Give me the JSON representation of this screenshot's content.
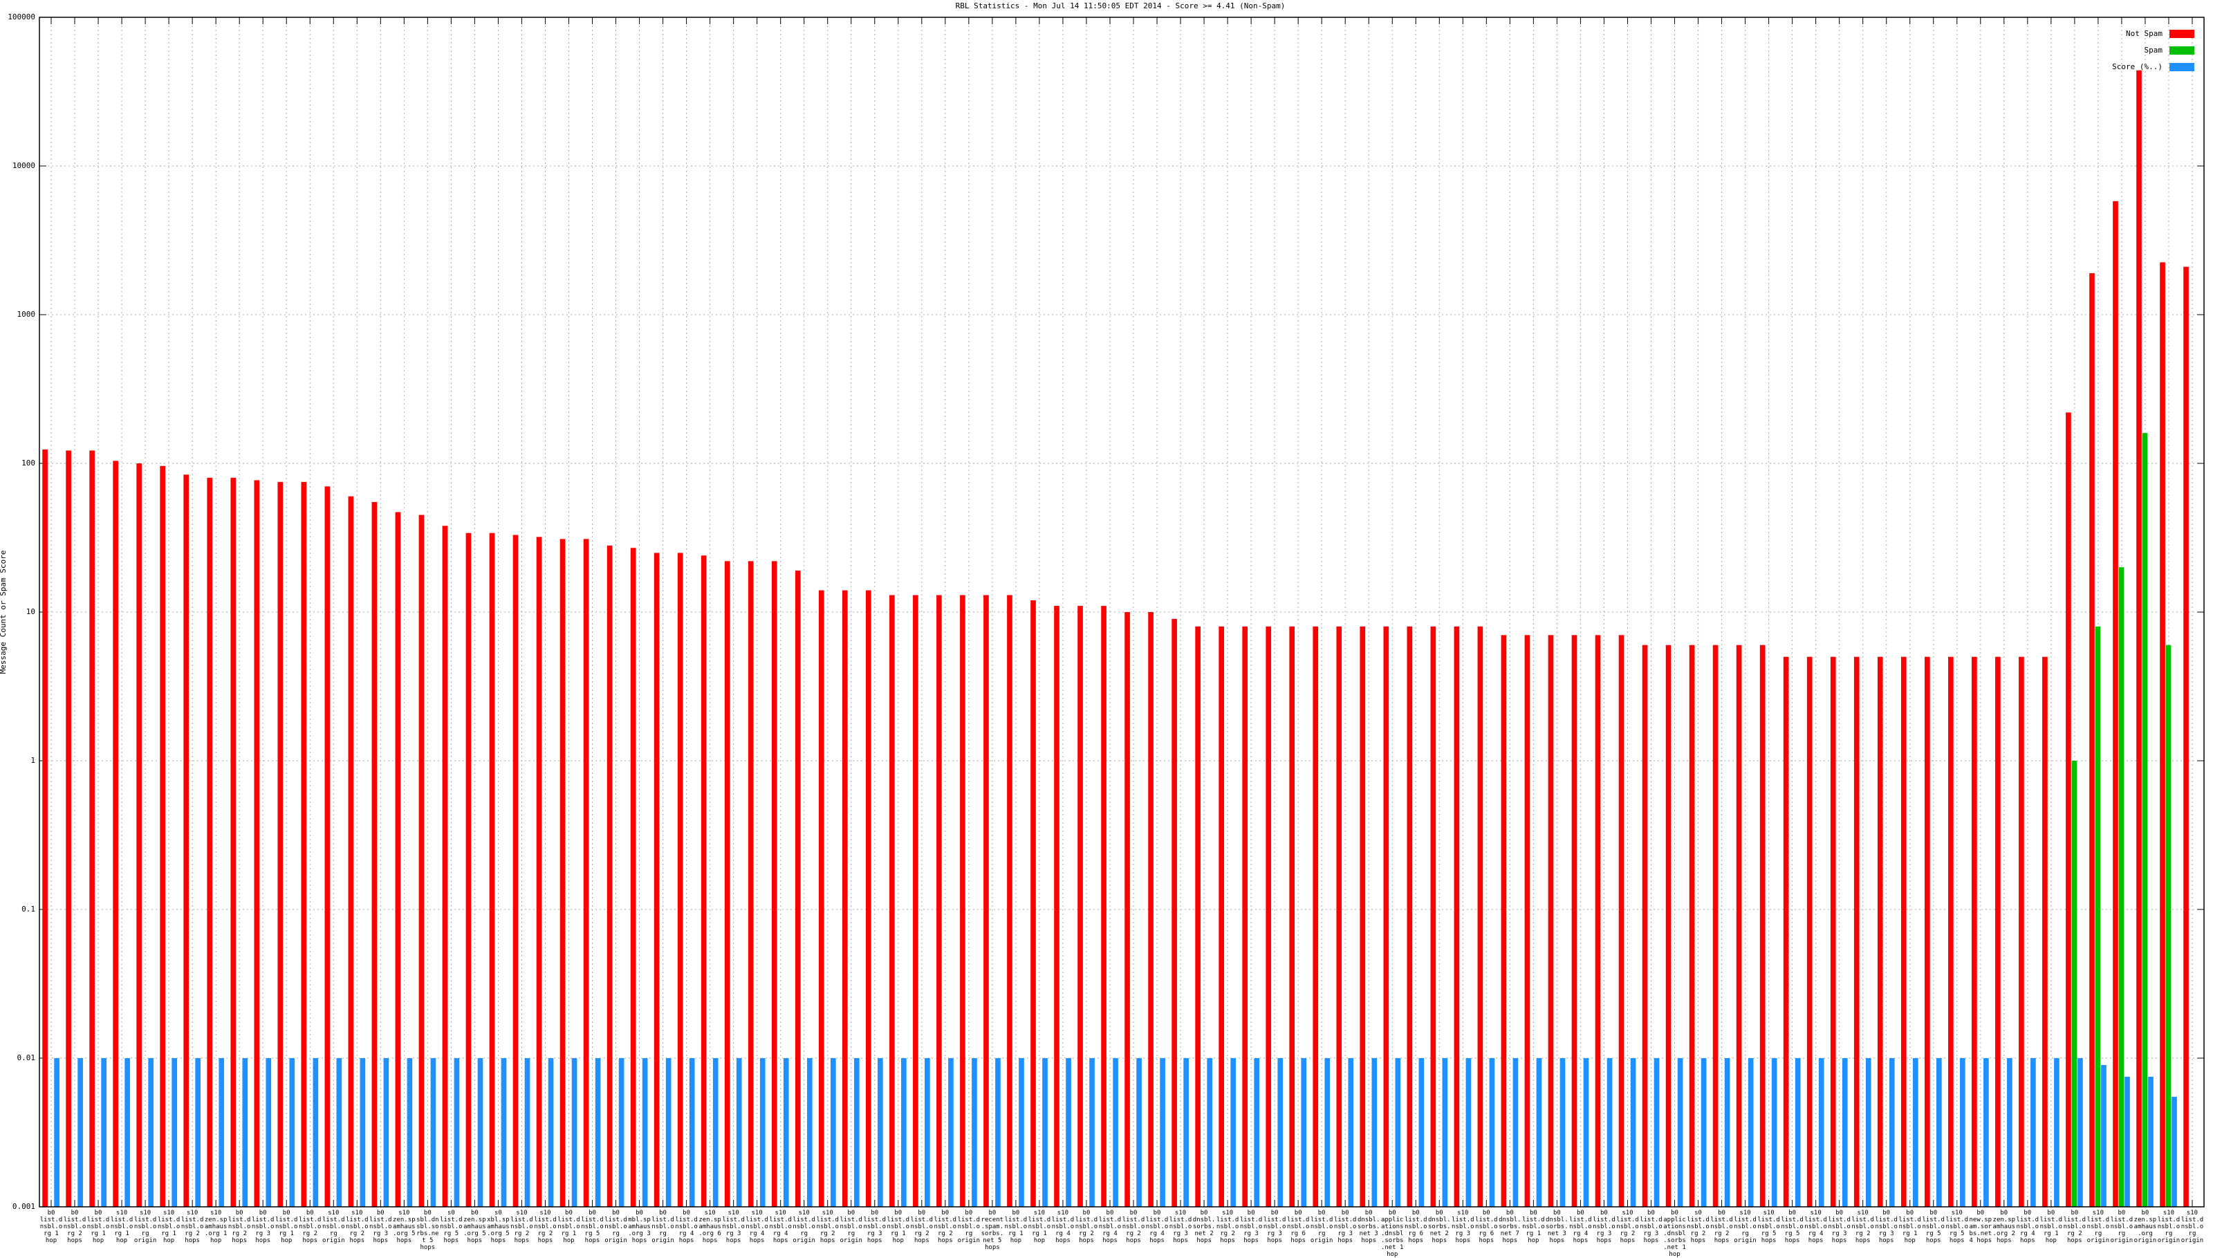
{
  "chart_data": {
    "type": "bar",
    "title": "RBL Statistics - Mon Jul 14 11:50:05 EDT 2014 - Score >= 4.41 (Non-Spam)",
    "y_label": "Message Count or Spam Score",
    "log_scale": true,
    "grid": true,
    "ylim": [
      0.001,
      100000
    ],
    "yticks": [
      0.001,
      0.01,
      0.1,
      1,
      10,
      100,
      1000,
      10000,
      100000
    ],
    "legend": "top-right",
    "categories": [
      "b0 list.dnsbl.org 1 hop",
      "b0 list.dnsbl.org 2 hops",
      "b0 list.dnsbl.org 1 hop",
      "s10 list.dnsbl.org 1 hop",
      "s10 list.dnsbl.org origin",
      "s10 list.dnsbl.org 1 hop",
      "s10 list.dnsbl.org 2 hops",
      "s10 zen.spamhaus.org 1 hop",
      "b0 list.dnsbl.org 2 hops",
      "b0 list.dnsbl.org 3 hops",
      "b0 list.dnsbl.org 1 hop",
      "b0 list.dnsbl.org 2 hops",
      "s10 list.dnsbl.org origin",
      "s10 list.dnsbl.org 2 hops",
      "b0 list.dnsbl.org 3 hops",
      "s10 zen.spamhaus.org 5 hops",
      "b0 sbl.dnsbl.sorbs.net 5 hops",
      "s0 list.dnsbl.org 5 hops",
      "b0 zen.spamhaus.org 5 hops",
      "s0 xbl.spamhaus.org 5 hops",
      "s10 list.dnsbl.org 2 hops",
      "s10 list.dnsbl.org 2 hops",
      "b0 list.dnsbl.org 1 hop",
      "b0 list.dnsbl.org 5 hops",
      "b0 list.dnsbl.org origin",
      "b0 mbl.spamhaus.org 3 hops",
      "b0 list.dnsbl.org origin",
      "b0 list.dnsbl.org 4 hops",
      "s10 zen.spamhaus.org 6 hops",
      "s10 list.dnsbl.org 3 hops",
      "s10 list.dnsbl.org 4 hops",
      "s10 list.dnsbl.org 4 hops",
      "s10 list.dnsbl.org origin",
      "s10 list.dnsbl.org 2 hops",
      "b0 list.dnsbl.org origin",
      "b0 list.dnsbl.org 3 hops",
      "b0 list.dnsbl.org 1 hop",
      "b0 list.dnsbl.org 2 hops",
      "b0 list.dnsbl.org 2 hops",
      "b0 list.dnsbl.org origin",
      "b0 recent.spam.sorbs.net 5 hops",
      "b0 list.dnsbl.org 1 hop",
      "s10 list.dnsbl.org 1 hop",
      "s10 list.dnsbl.org 4 hops",
      "b0 list.dnsbl.org 2 hops",
      "b0 list.dnsbl.org 4 hops",
      "b0 list.dnsbl.org 2 hops",
      "b0 list.dnsbl.org 4 hops",
      "s10 list.dnsbl.org 3 hops",
      "b0 dnsbl.sorbs.net 2 hops",
      "s10 list.dnsbl.org 2 hops",
      "b0 list.dnsbl.org 3 hops",
      "b0 list.dnsbl.org 3 hops",
      "b0 list.dnsbl.org 6 hops",
      "b0 list.dnsbl.org origin",
      "b0 list.dnsbl.org 3 hops",
      "b0 dnsbl.sorbs.net 3 hops",
      "b0 applications.dnsbl.sorbs.net 1 hop",
      "b0 list.dnsbl.org 6 hops",
      "b0 dnsbl.sorbs.net 2 hops",
      "s10 list.dnsbl.org 3 hops",
      "b0 list.dnsbl.org 6 hops",
      "b0 dnsbl.sorbs.net 7 hops",
      "b0 list.dnsbl.org 1 hop",
      "b0 dnsbl.sorbs.net 3 hops",
      "b0 list.dnsbl.org 4 hops",
      "b0 list.dnsbl.org 3 hops",
      "s10 list.dnsbl.org 2 hops",
      "b0 list.dnsbl.org 3 hops",
      "b0 applications.dnsbl.sorbs.net 1 hop",
      "s0 list.dnsbl.org 2 hops",
      "b0 list.dnsbl.org 2 hops",
      "s10 list.dnsbl.org origin",
      "s10 list.dnsbl.org 5 hops",
      "b0 list.dnsbl.org 5 hops",
      "s10 list.dnsbl.org 4 hops",
      "b0 list.dnsbl.org 3 hops",
      "s10 list.dnsbl.org 2 hops",
      "b0 list.dnsbl.org 3 hops",
      "b0 list.dnsbl.org 1 hop",
      "b0 list.dnsbl.org 5 hops",
      "s10 list.dnsbl.org 5 hops",
      "b0 new.spam.sorbs.net 4 hops",
      "b0 zen.spamhaus.org 2 hops",
      "b0 list.dnsbl.org 4 hops",
      "b0 list.dnsbl.org 1 hop",
      "b0 list.dnsbl.org 2 hops",
      "s10 list.dnsbl.org origin",
      "b0 list.dnsbl.org origin",
      "b0 zen.spamhaus.org origin",
      "s10 list.dnsbl.org origin",
      "s10 list.dnsbl.org origin"
    ],
    "series": [
      {
        "name": "Not Spam",
        "color": "#ff0000",
        "values": [
          124,
          122,
          122,
          104,
          100,
          96,
          84,
          80,
          80,
          77,
          75,
          75,
          70,
          60,
          55,
          47,
          45,
          38,
          34,
          34,
          33,
          32,
          31,
          31,
          28,
          27,
          25,
          25,
          24,
          22,
          22,
          22,
          19,
          14,
          14,
          14,
          13,
          13,
          13,
          13,
          13,
          13,
          12,
          11,
          11,
          11,
          10,
          10,
          9,
          8,
          8,
          8,
          8,
          8,
          8,
          8,
          8,
          8,
          8,
          8,
          8,
          8,
          7,
          7,
          7,
          7,
          7,
          7,
          6,
          6,
          6,
          6,
          6,
          6,
          5,
          5,
          5,
          5,
          5,
          5,
          5,
          5,
          5,
          5,
          5,
          5,
          220,
          1900,
          5800,
          44000,
          2250,
          2100
        ]
      },
      {
        "name": "Spam",
        "color": "#00c000",
        "values": [
          null,
          null,
          null,
          null,
          null,
          null,
          null,
          null,
          null,
          null,
          null,
          null,
          null,
          null,
          null,
          null,
          null,
          null,
          null,
          null,
          null,
          null,
          null,
          null,
          null,
          null,
          null,
          null,
          null,
          null,
          null,
          null,
          null,
          null,
          null,
          null,
          null,
          null,
          null,
          null,
          null,
          null,
          null,
          null,
          null,
          null,
          null,
          null,
          null,
          null,
          null,
          null,
          null,
          null,
          null,
          null,
          null,
          null,
          null,
          null,
          null,
          null,
          null,
          null,
          null,
          null,
          null,
          null,
          null,
          null,
          null,
          null,
          null,
          null,
          null,
          null,
          null,
          null,
          null,
          null,
          null,
          null,
          null,
          null,
          null,
          null,
          1,
          8,
          20,
          160,
          6,
          null
        ]
      },
      {
        "name": "Score (%..)",
        "color": "#1e90ff",
        "values": [
          0.01,
          0.01,
          0.01,
          0.01,
          0.01,
          0.01,
          0.01,
          0.01,
          0.01,
          0.01,
          0.01,
          0.01,
          0.01,
          0.01,
          0.01,
          0.01,
          0.01,
          0.01,
          0.01,
          0.01,
          0.01,
          0.01,
          0.01,
          0.01,
          0.01,
          0.01,
          0.01,
          0.01,
          0.01,
          0.01,
          0.01,
          0.01,
          0.01,
          0.01,
          0.01,
          0.01,
          0.01,
          0.01,
          0.01,
          0.01,
          0.01,
          0.01,
          0.01,
          0.01,
          0.01,
          0.01,
          0.01,
          0.01,
          0.01,
          0.01,
          0.01,
          0.01,
          0.01,
          0.01,
          0.01,
          0.01,
          0.01,
          0.01,
          0.01,
          0.01,
          0.01,
          0.01,
          0.01,
          0.01,
          0.01,
          0.01,
          0.01,
          0.01,
          0.01,
          0.01,
          0.01,
          0.01,
          0.01,
          0.01,
          0.01,
          0.01,
          0.01,
          0.01,
          0.01,
          0.01,
          0.01,
          0.01,
          0.01,
          0.01,
          0.01,
          0.01,
          0.01,
          0.009,
          0.0075,
          0.0075,
          0.0055,
          null
        ]
      }
    ]
  }
}
